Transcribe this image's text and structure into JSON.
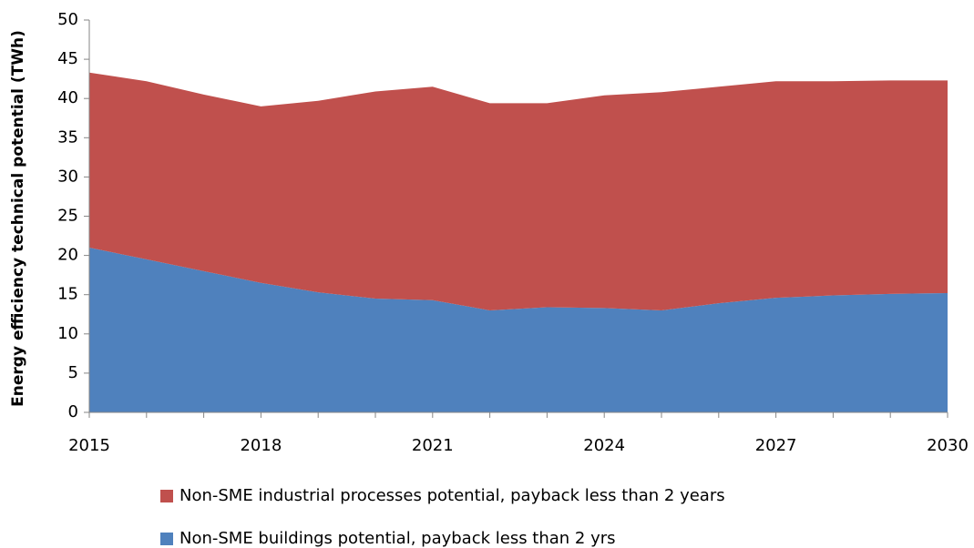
{
  "chart_data": {
    "type": "stacked_area",
    "y_label": "Energy efficiency technical potential (TWh)",
    "x": [
      2015,
      2016,
      2017,
      2018,
      2019,
      2020,
      2021,
      2022,
      2023,
      2024,
      2025,
      2026,
      2027,
      2028,
      2029,
      2030
    ],
    "series": [
      {
        "name": "Non-SME buildings potential, payback less than 2 yrs",
        "color": "#4f81bd",
        "values": [
          21,
          19.5,
          18,
          16.5,
          15.3,
          14.5,
          14.3,
          13,
          13.4,
          13.3,
          13,
          13.9,
          14.6,
          14.9,
          15.1,
          15.2
        ]
      },
      {
        "name": "Non-SME industrial processes potential, payback less than 2 years",
        "color": "#c0504d",
        "values": [
          22.3,
          22.7,
          22.5,
          22.5,
          24.4,
          26.4,
          27.2,
          26.4,
          26.0,
          27.1,
          27.8,
          27.6,
          27.6,
          27.3,
          27.2,
          27.1
        ]
      }
    ],
    "xlim": [
      2015,
      2030
    ],
    "xticks": [
      2015,
      2018,
      2021,
      2024,
      2027,
      2030
    ],
    "ylim": [
      0,
      50
    ],
    "yticks": [
      0,
      5,
      10,
      15,
      20,
      25,
      30,
      35,
      40,
      45,
      50
    ],
    "grid": false
  }
}
